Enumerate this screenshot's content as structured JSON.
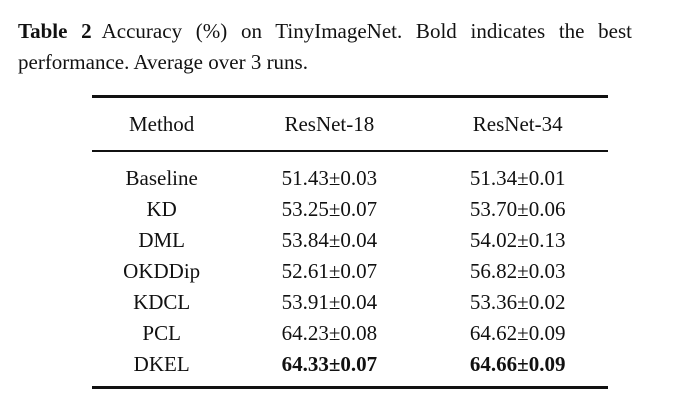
{
  "caption": {
    "label": "Table 2",
    "text": "Accuracy (%) on TinyImageNet. Bold indicates the best performance. Average over 3 runs."
  },
  "table": {
    "columns": [
      "Method",
      "ResNet-18",
      "ResNet-34"
    ],
    "rows": [
      {
        "method": "Baseline",
        "resnet18": "51.43±0.03",
        "resnet34": "51.34±0.01",
        "bold": false
      },
      {
        "method": "KD",
        "resnet18": "53.25±0.07",
        "resnet34": "53.70±0.06",
        "bold": false
      },
      {
        "method": "DML",
        "resnet18": "53.84±0.04",
        "resnet34": "54.02±0.13",
        "bold": false
      },
      {
        "method": "OKDDip",
        "resnet18": "52.61±0.07",
        "resnet34": "56.82±0.03",
        "bold": false
      },
      {
        "method": "KDCL",
        "resnet18": "53.91±0.04",
        "resnet34": "53.36±0.02",
        "bold": false
      },
      {
        "method": "PCL",
        "resnet18": "64.23±0.08",
        "resnet34": "64.62±0.09",
        "bold": false
      },
      {
        "method": "DKEL",
        "resnet18": "64.33±0.07",
        "resnet34": "64.66±0.09",
        "bold": true
      }
    ]
  },
  "chart_data": {
    "type": "table",
    "title": "Table 2 Accuracy (%) on TinyImageNet",
    "columns": [
      "Method",
      "ResNet-18",
      "ResNet-34"
    ],
    "rows": [
      [
        "Baseline",
        "51.43±0.03",
        "51.34±0.01"
      ],
      [
        "KD",
        "53.25±0.07",
        "53.70±0.06"
      ],
      [
        "DML",
        "53.84±0.04",
        "54.02±0.13"
      ],
      [
        "OKDDip",
        "52.61±0.07",
        "56.82±0.03"
      ],
      [
        "KDCL",
        "53.91±0.04",
        "53.36±0.02"
      ],
      [
        "PCL",
        "64.23±0.08",
        "64.62±0.09"
      ],
      [
        "DKEL",
        "64.33±0.07",
        "64.66±0.09"
      ]
    ],
    "best_row": "DKEL"
  },
  "colors": {
    "text": "#111111",
    "background": "#ffffff",
    "rule": "#111111"
  }
}
